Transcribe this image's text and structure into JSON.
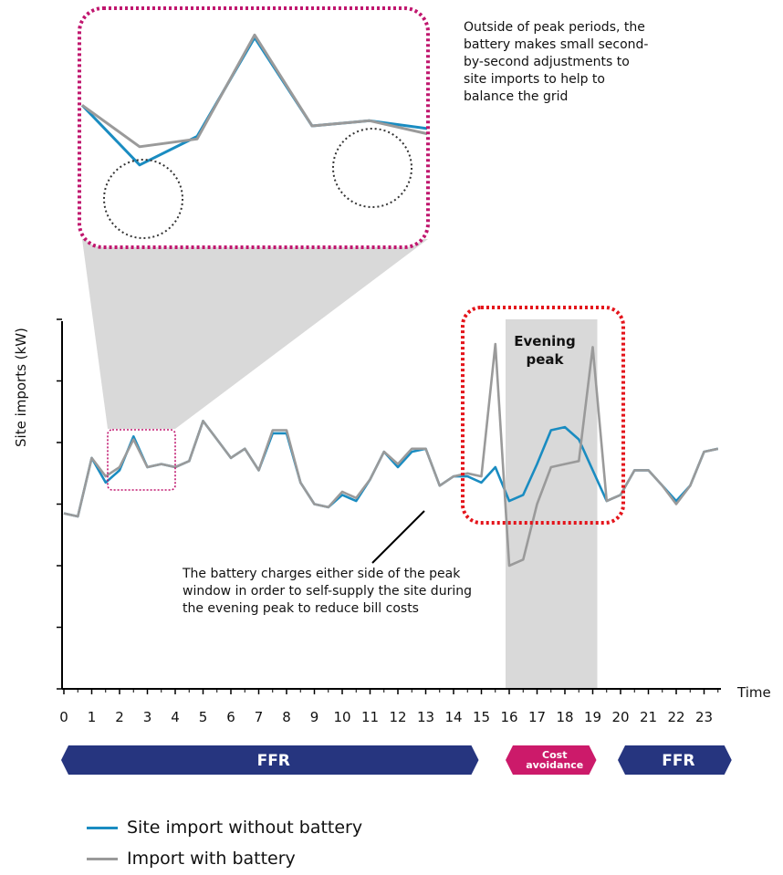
{
  "chart_data": {
    "type": "line",
    "xlabel": "Time",
    "ylabel": "Site imports (kW)",
    "xlim": [
      0,
      23.5
    ],
    "ylim": [
      0,
      6
    ],
    "x_ticks": [
      0,
      1,
      2,
      3,
      4,
      5,
      6,
      7,
      8,
      9,
      10,
      11,
      12,
      13,
      14,
      15,
      16,
      17,
      18,
      19,
      20,
      21,
      22,
      23
    ],
    "x": [
      0,
      0.5,
      1,
      1.5,
      2,
      2.5,
      3,
      3.5,
      4,
      4.5,
      5,
      5.5,
      6,
      6.5,
      7,
      7.5,
      8,
      8.5,
      9,
      9.5,
      10,
      10.5,
      11,
      11.5,
      12,
      12.5,
      13,
      13.5,
      14,
      14.5,
      15,
      15.5,
      16,
      16.5,
      17,
      17.5,
      18,
      18.5,
      19,
      19.5,
      20,
      20.5,
      21,
      21.5,
      22,
      22.5,
      23,
      23.5
    ],
    "series": [
      {
        "name": "Site import without battery",
        "color": "#1a8cc1",
        "values": [
          2.85,
          2.8,
          3.75,
          3.35,
          3.55,
          4.1,
          3.6,
          3.65,
          3.6,
          3.7,
          4.35,
          4.05,
          3.75,
          3.9,
          3.55,
          4.15,
          4.15,
          3.35,
          3.0,
          2.95,
          3.15,
          3.05,
          3.4,
          3.85,
          3.6,
          3.85,
          3.9,
          3.3,
          3.45,
          3.45,
          3.35,
          3.6,
          3.05,
          3.15,
          3.65,
          4.2,
          4.25,
          4.05,
          3.55,
          3.05,
          3.15,
          3.55,
          3.55,
          3.3,
          3.05,
          3.3,
          3.85,
          3.9
        ]
      },
      {
        "name": "Import with battery",
        "color": "#9a9a9a",
        "values": [
          2.85,
          2.8,
          3.75,
          3.45,
          3.6,
          4.05,
          3.6,
          3.65,
          3.6,
          3.7,
          4.35,
          4.05,
          3.75,
          3.9,
          3.55,
          4.2,
          4.2,
          3.35,
          3.0,
          2.95,
          3.2,
          3.1,
          3.4,
          3.85,
          3.65,
          3.9,
          3.9,
          3.3,
          3.45,
          3.5,
          3.45,
          5.6,
          2.0,
          2.1,
          3.0,
          3.6,
          3.65,
          3.7,
          5.55,
          3.05,
          3.15,
          3.55,
          3.55,
          3.3,
          3.0,
          3.3,
          3.85,
          3.9
        ]
      }
    ],
    "legend_position": "bottom-left",
    "grid": false,
    "annotations": {
      "top_note": "Outside of peak periods, the battery makes small second-by-second adjustments to site imports to help to balance the grid",
      "bottom_note": "The battery charges either side of the peak window in order to self-supply the site during the evening peak to reduce bill costs",
      "peak_label": "Evening peak",
      "peak_window": [
        16,
        19
      ]
    },
    "bands": [
      {
        "label": "FFR",
        "start": 0,
        "end": 15,
        "color": "#26357f"
      },
      {
        "label": "Cost avoidance",
        "start": 16,
        "end": 19,
        "color": "#cc1a6a"
      },
      {
        "label": "FFR",
        "start": 20,
        "end": 23.5,
        "color": "#26357f"
      }
    ],
    "inset": {
      "x": [
        1.0,
        1.5,
        2.0,
        2.5,
        3.0,
        3.5,
        4.0
      ],
      "series": [
        {
          "name": "Site import without battery",
          "values": [
            3.75,
            2.6,
            3.15,
            5.05,
            3.35,
            3.45,
            3.3
          ]
        },
        {
          "name": "Import with battery",
          "values": [
            3.75,
            2.95,
            3.1,
            5.1,
            3.35,
            3.45,
            3.2
          ]
        }
      ]
    }
  },
  "colors": {
    "blue_line": "#1a8cc1",
    "grey_line": "#9a9a9a",
    "magenta": "#c0166e",
    "red": "#e4141b",
    "navy": "#26357f",
    "peak_shade": "#d9d9d9"
  }
}
